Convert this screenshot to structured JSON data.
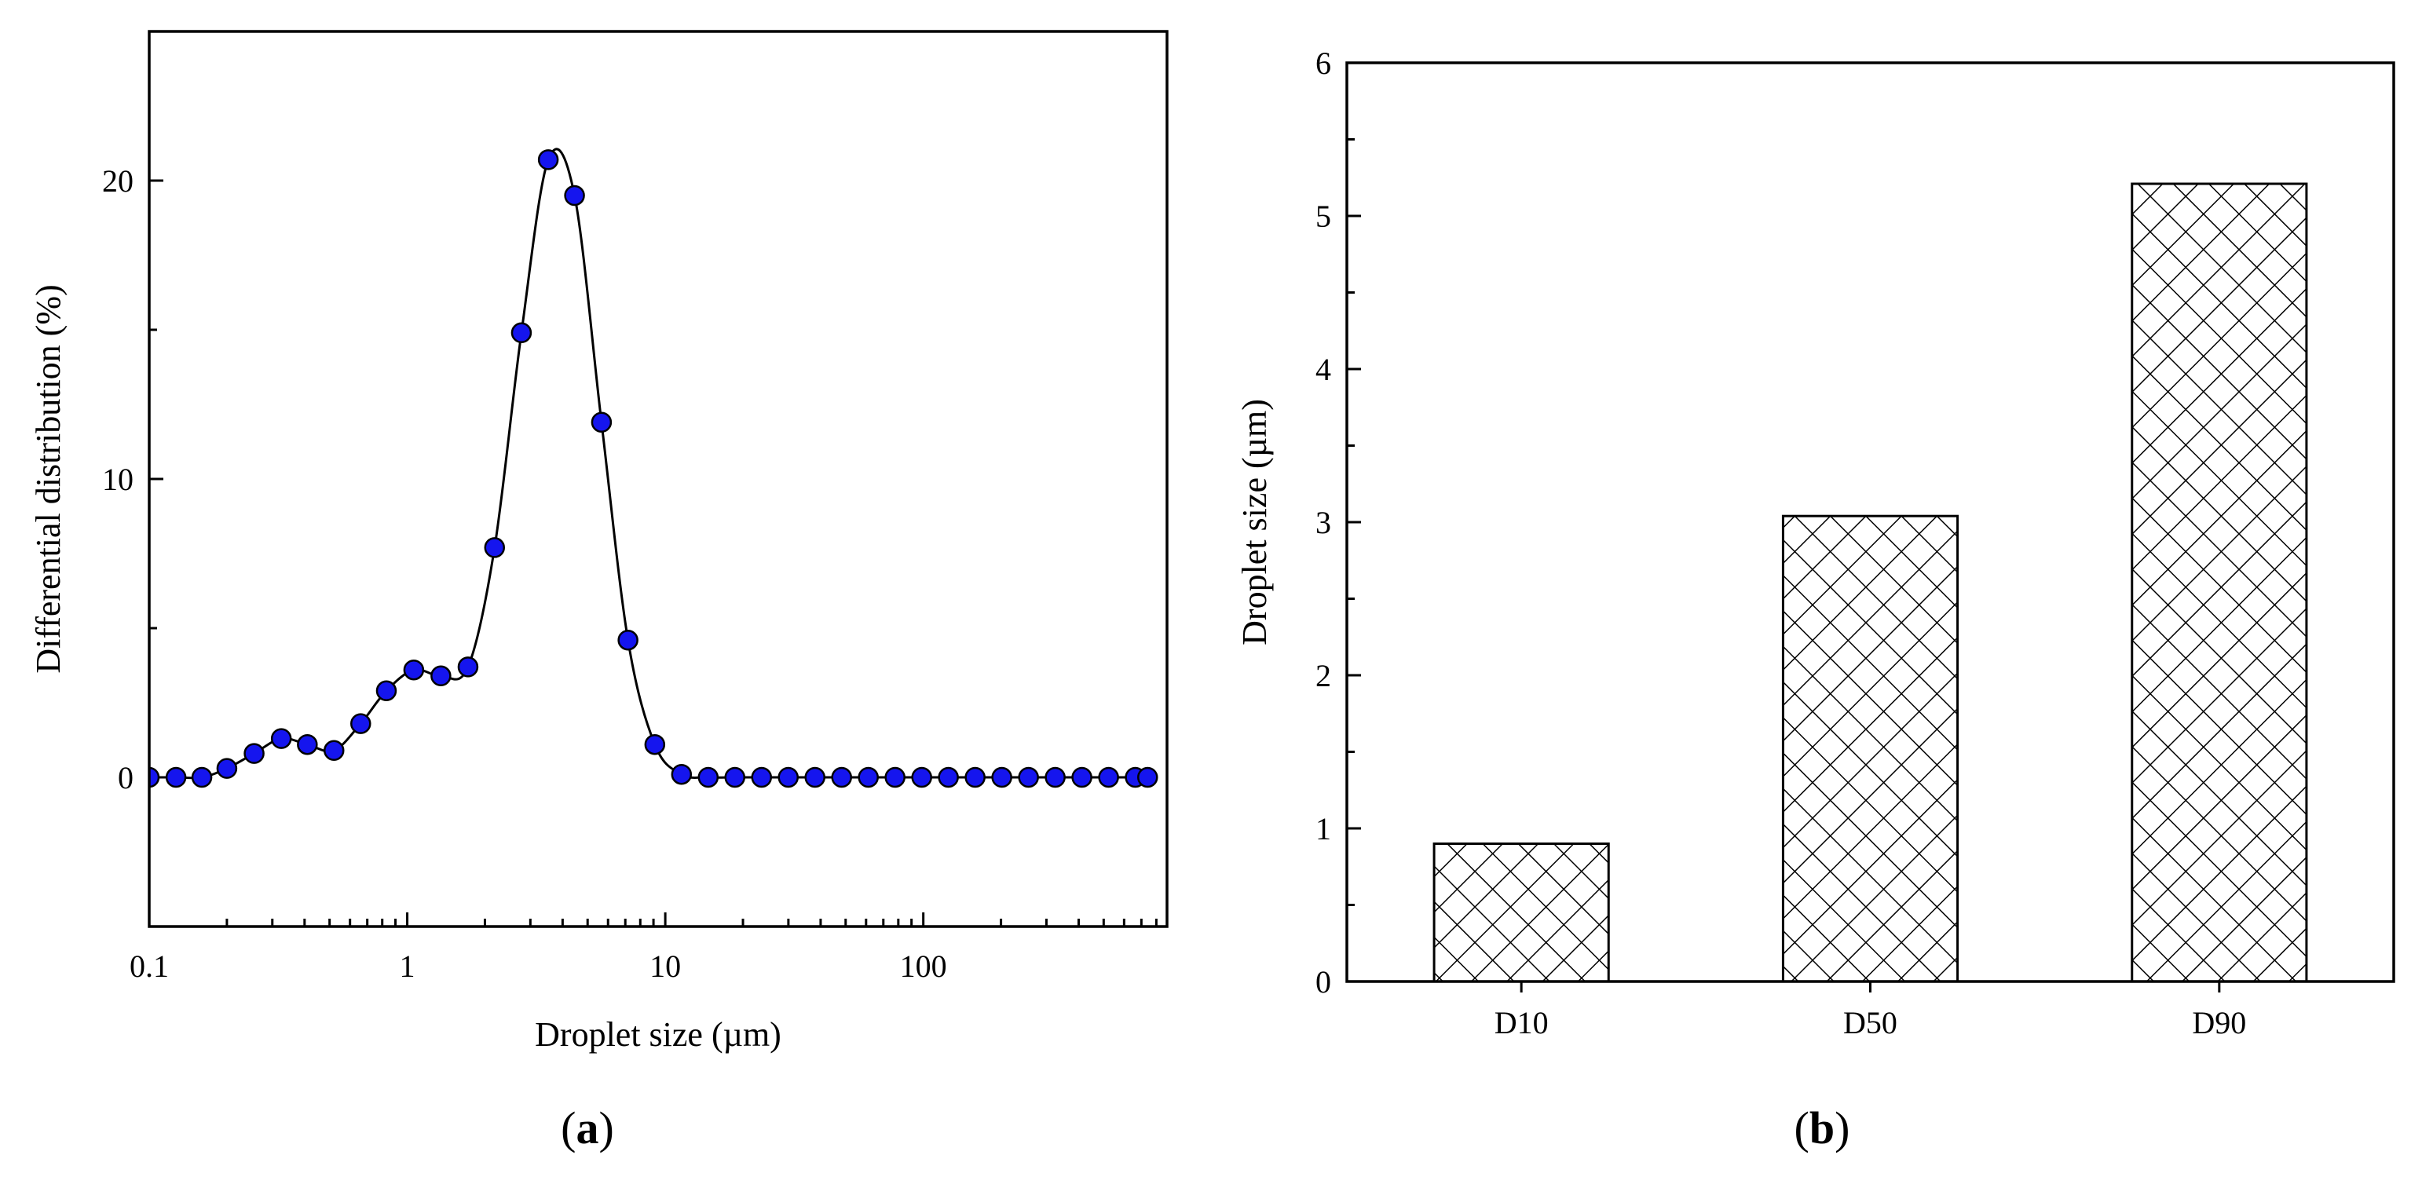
{
  "chart_data": [
    {
      "type": "scatter",
      "panel": "(a)",
      "panel_letter": "a",
      "xlabel": "Droplet size (µm)",
      "ylabel": "Differential distribution (%)",
      "xscale": "log",
      "xlim": [
        0.1,
        880
      ],
      "ylim": [
        -5,
        25
      ],
      "xticks": [
        0.1,
        1,
        10,
        100
      ],
      "xtick_labels": [
        "0.1",
        "1",
        "10",
        "100"
      ],
      "yticks": [
        0,
        10,
        20
      ],
      "ytick_labels": [
        "0",
        "10",
        "20"
      ],
      "marker_color": "#1515ee",
      "line_color": "#000000",
      "series": [
        {
          "name": "Differential distribution",
          "x": [
            0.1,
            0.127,
            0.16,
            0.2,
            0.255,
            0.325,
            0.41,
            0.52,
            0.66,
            0.83,
            1.06,
            1.35,
            1.72,
            2.18,
            2.77,
            3.52,
            4.45,
            5.66,
            7.17,
            9.11,
            11.56,
            14.67,
            18.61,
            23.62,
            29.97,
            38.03,
            48.26,
            61.24,
            77.71,
            98.62,
            125.1,
            158.8,
            201.5,
            255.7,
            324.5,
            411.7,
            522.5,
            663,
            740
          ],
          "y": [
            0,
            0,
            0,
            0.3,
            0.8,
            1.3,
            1.1,
            0.9,
            1.8,
            2.9,
            3.6,
            3.4,
            3.7,
            7.7,
            14.9,
            20.7,
            19.5,
            11.9,
            4.6,
            1.1,
            0.1,
            0,
            0,
            0,
            0,
            0,
            0,
            0,
            0,
            0,
            0,
            0,
            0,
            0,
            0,
            0,
            0,
            0,
            0
          ]
        }
      ]
    },
    {
      "type": "bar",
      "panel": "(b)",
      "panel_letter": "b",
      "xlabel": "",
      "ylabel": "Droplet size (µm)",
      "categories": [
        "D10",
        "D50",
        "D90"
      ],
      "values": [
        0.9,
        3.04,
        5.21
      ],
      "ylim": [
        0,
        6
      ],
      "yticks": [
        0,
        1,
        2,
        3,
        4,
        5,
        6
      ],
      "ytick_labels": [
        "0",
        "1",
        "2",
        "3",
        "4",
        "5",
        "6"
      ],
      "bar_fill": "cross-hatch",
      "bar_color": "#000000"
    }
  ]
}
